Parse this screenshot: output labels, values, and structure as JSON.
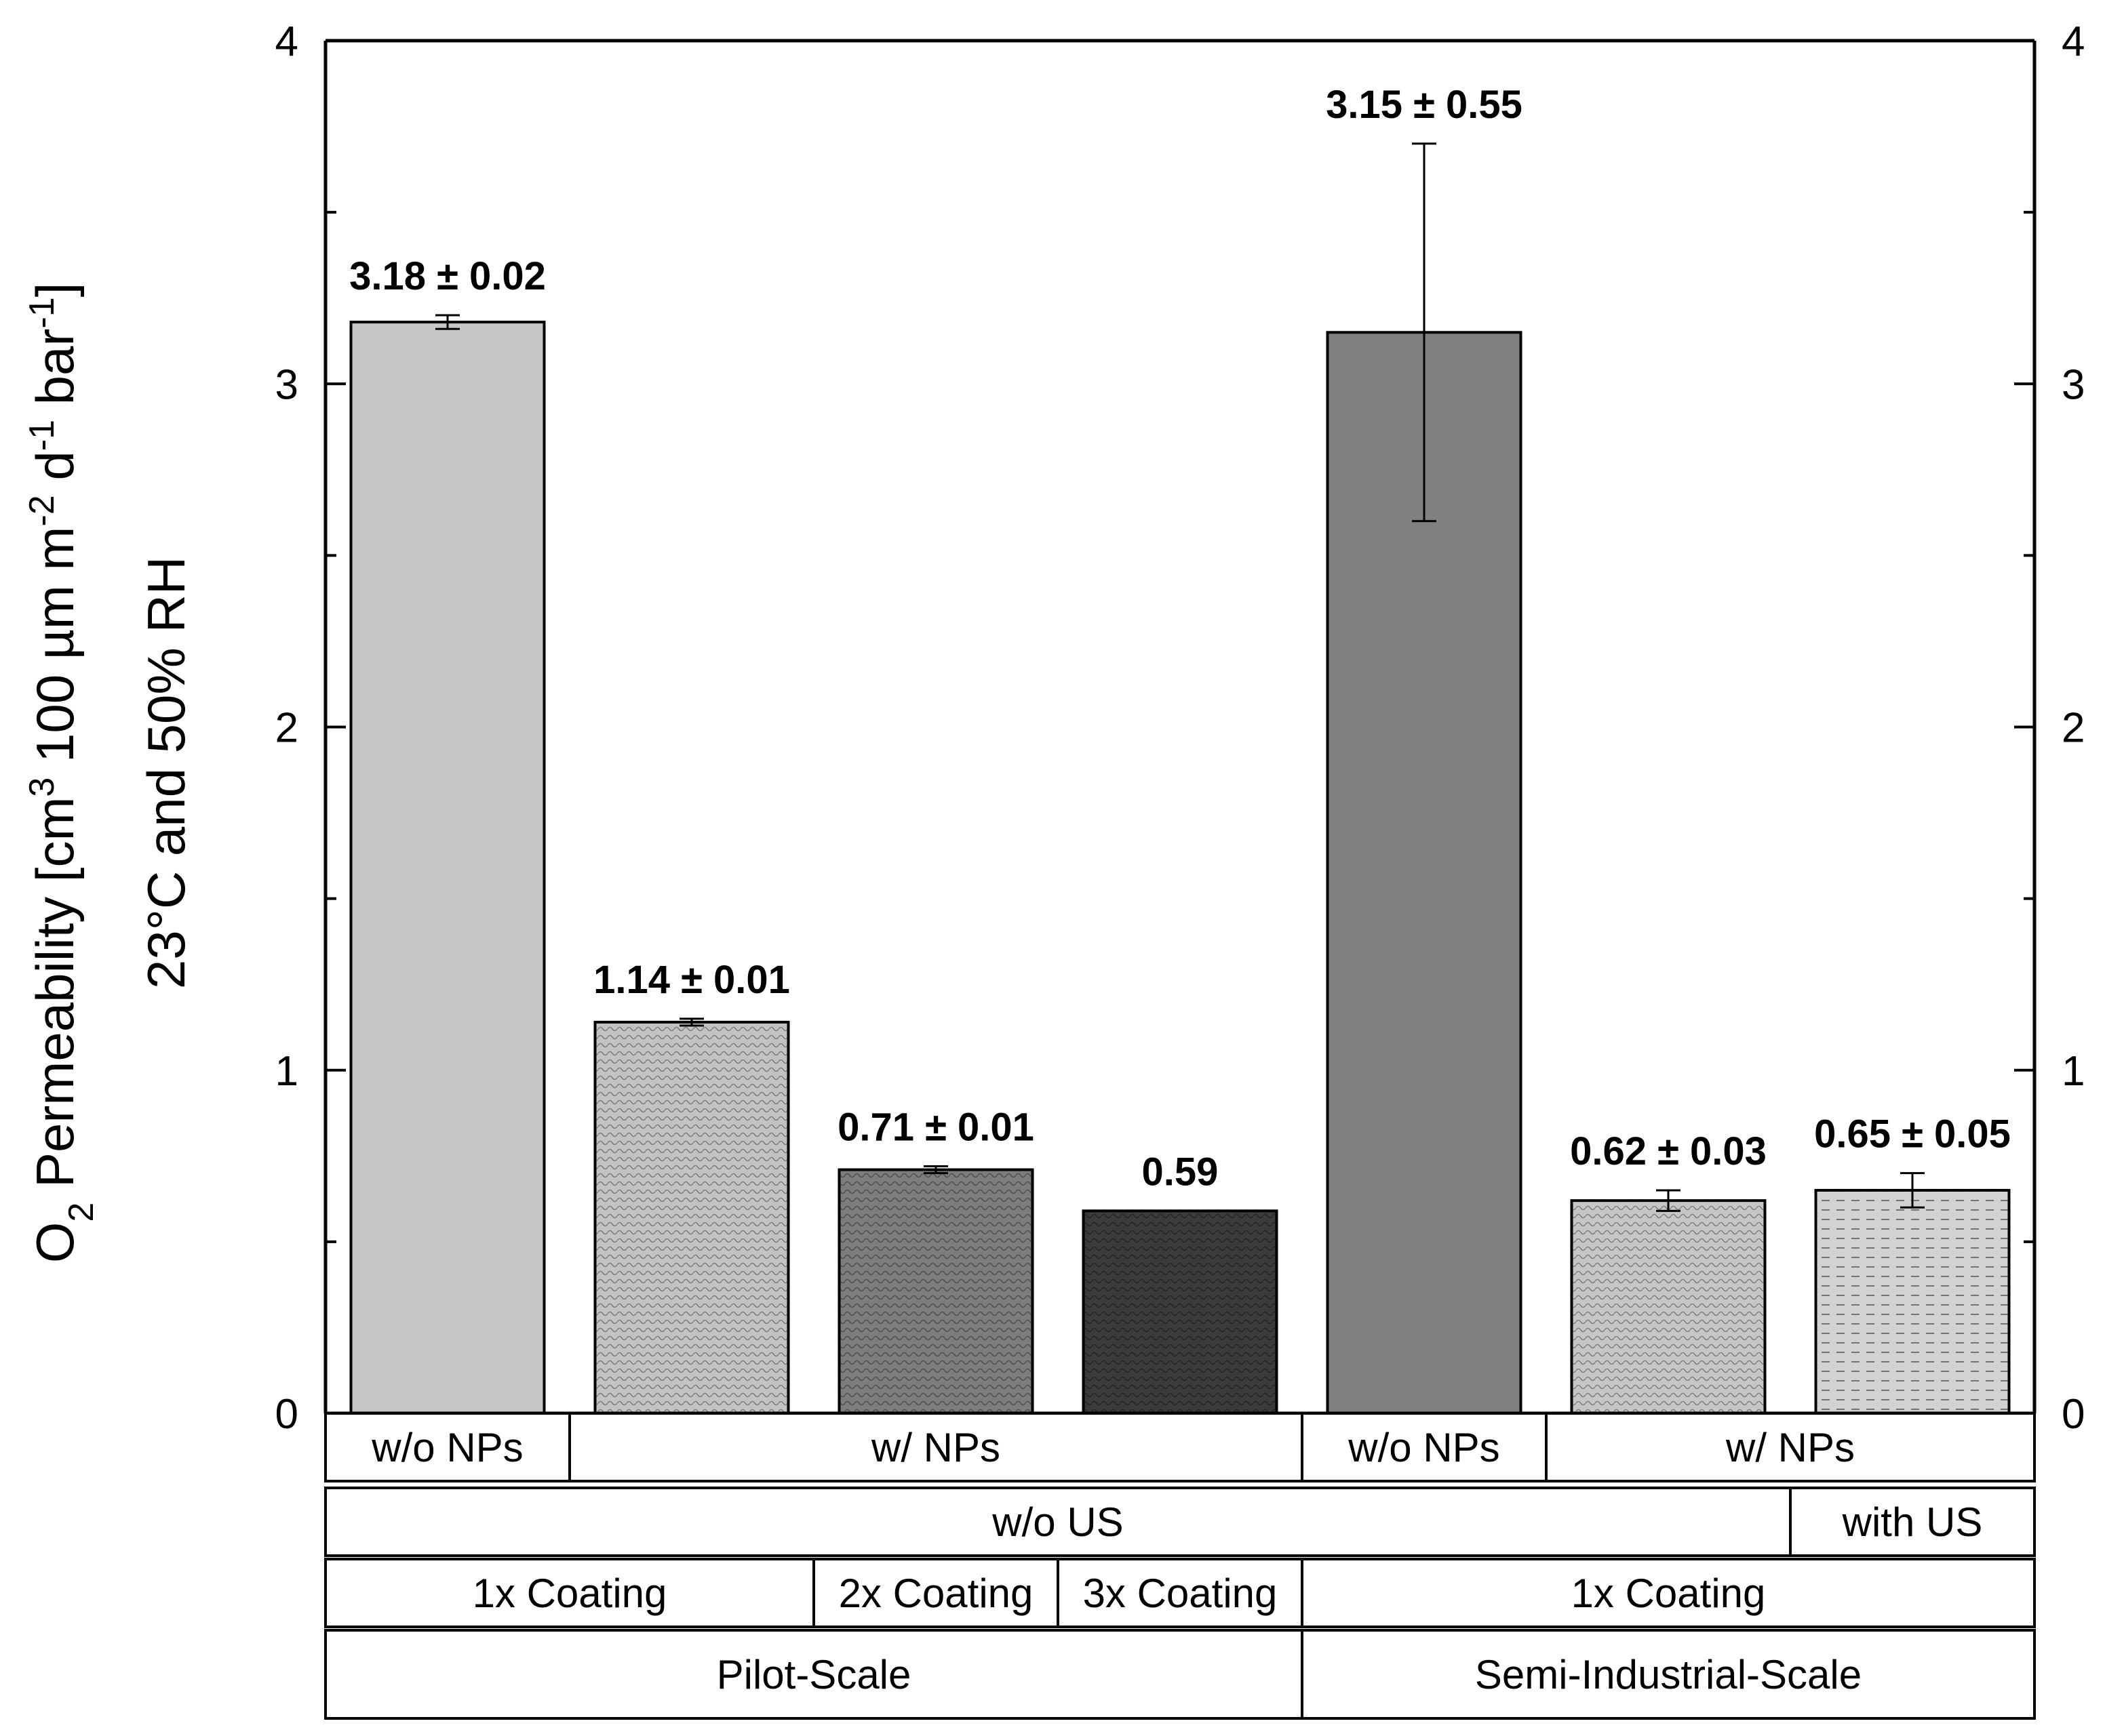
{
  "chart_data": {
    "type": "bar",
    "ylabel_line1_prefix": "O",
    "ylabel_line1_sub": "2",
    "ylabel_line1_mid1": " Permeability [cm",
    "ylabel_line1_sup1": "3",
    "ylabel_line1_mid2": " 100 µm m",
    "ylabel_line1_sup2": "-2",
    "ylabel_line1_mid3": " d",
    "ylabel_line1_sup3": "-1",
    "ylabel_line1_mid4": " bar",
    "ylabel_line1_sup4": "-1",
    "ylabel_line1_end": "]",
    "ylabel_line2": "23°C and 50% RH",
    "ylim": [
      0,
      4
    ],
    "yticks": [
      "0",
      "1",
      "2",
      "3",
      "4"
    ],
    "minor_step": 0.5,
    "bars": [
      {
        "value": 3.18,
        "error": 0.02,
        "label": "3.18 ± 0.02",
        "fill": "#c6c6c6",
        "pattern": "solid"
      },
      {
        "value": 1.14,
        "error": 0.01,
        "label": "1.14 ± 0.01",
        "fill": "#c3c3c3",
        "pattern": "wave"
      },
      {
        "value": 0.71,
        "error": 0.01,
        "label": "0.71 ± 0.01",
        "fill": "#7d7d7d",
        "pattern": "wave"
      },
      {
        "value": 0.59,
        "error": 0,
        "label": "0.59",
        "fill": "#3b3b3b",
        "pattern": "wave"
      },
      {
        "value": 3.15,
        "error": 0.55,
        "label": "3.15 ± 0.55",
        "fill": "#808080",
        "pattern": "solid"
      },
      {
        "value": 0.62,
        "error": 0.03,
        "label": "0.62 ± 0.03",
        "fill": "#c6c6c6",
        "pattern": "wave"
      },
      {
        "value": 0.65,
        "error": 0.05,
        "label": "0.65 ± 0.05",
        "fill": "#d2d2d2",
        "pattern": "dash"
      }
    ],
    "category_rows": [
      [
        {
          "label": "w/o NPs",
          "span": [
            0,
            0
          ]
        },
        {
          "label": "w/ NPs",
          "span": [
            1,
            3
          ]
        },
        {
          "label": "w/o NPs",
          "span": [
            4,
            4
          ]
        },
        {
          "label": "w/ NPs",
          "span": [
            5,
            6
          ]
        }
      ],
      [
        {
          "label": "w/o US",
          "span": [
            0,
            5
          ]
        },
        {
          "label": "with US",
          "span": [
            6,
            6
          ]
        }
      ],
      [
        {
          "label": "1x Coating",
          "span": [
            0,
            1
          ]
        },
        {
          "label": "2x Coating",
          "span": [
            2,
            2
          ]
        },
        {
          "label": "3x Coating",
          "span": [
            3,
            3
          ]
        },
        {
          "label": "1x Coating",
          "span": [
            4,
            6
          ]
        }
      ],
      [
        {
          "label": "Pilot-Scale",
          "span": [
            0,
            3
          ]
        },
        {
          "label": "Semi-Industrial-Scale",
          "span": [
            4,
            6
          ]
        }
      ]
    ]
  }
}
